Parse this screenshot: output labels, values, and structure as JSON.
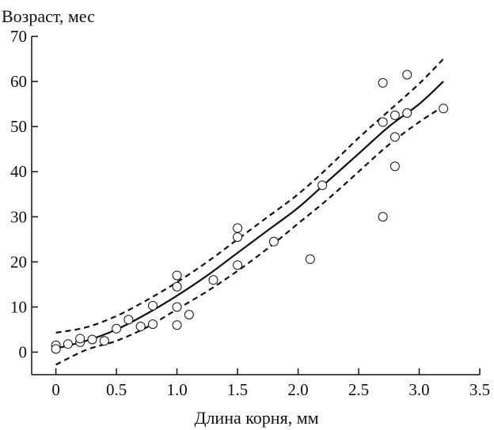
{
  "chart_data": {
    "type": "scatter",
    "title": "",
    "xlabel": "Длина корня, мм",
    "ylabel": "Возраст, мес",
    "xlim": [
      -0.2,
      3.5
    ],
    "ylim": [
      -5,
      70
    ],
    "x_ticks": [
      "0",
      "0.5",
      "1.0",
      "1.5",
      "2.0",
      "2.5",
      "3.0",
      "3.5"
    ],
    "x_tick_values": [
      0,
      0.5,
      1.0,
      1.5,
      2.0,
      2.5,
      3.0,
      3.5
    ],
    "y_ticks": [
      "0",
      "10",
      "20",
      "30",
      "40",
      "50",
      "60",
      "70"
    ],
    "y_tick_values": [
      0,
      10,
      20,
      30,
      40,
      50,
      60,
      70
    ],
    "grid": false,
    "legend": "none",
    "points": {
      "x": [
        0,
        0,
        0.1,
        0.2,
        0.2,
        0.3,
        0.4,
        0.5,
        0.6,
        0.7,
        0.8,
        0.8,
        1.0,
        1.0,
        1.0,
        1.0,
        1.1,
        1.3,
        1.5,
        1.5,
        1.5,
        1.8,
        2.1,
        2.2,
        2.7,
        2.7,
        2.7,
        2.8,
        2.8,
        2.8,
        2.9,
        2.9,
        3.2
      ],
      "y": [
        1.5,
        0.7,
        1.8,
        2.2,
        3.0,
        2.8,
        2.5,
        5.2,
        7.2,
        5.7,
        6.2,
        10.3,
        17.0,
        14.5,
        10.0,
        6.0,
        8.3,
        16.0,
        27.5,
        25.5,
        19.3,
        24.5,
        20.6,
        37.0,
        59.7,
        51.0,
        30.0,
        52.5,
        47.7,
        41.2,
        61.5,
        53.0,
        54.0
      ]
    },
    "fit_line": {
      "style": "solid",
      "x": [
        0,
        0.25,
        0.5,
        0.75,
        1.0,
        1.25,
        1.5,
        1.75,
        2.0,
        2.25,
        2.5,
        2.75,
        3.0,
        3.2
      ],
      "y": [
        0.8,
        2.5,
        5.0,
        8.5,
        12.5,
        17.0,
        22.0,
        27.0,
        32.0,
        38.0,
        44.0,
        50.0,
        55.0,
        60.0
      ]
    },
    "upper_band": {
      "style": "dashed",
      "x": [
        0,
        0.25,
        0.5,
        0.75,
        1.0,
        1.25,
        1.5,
        1.75,
        2.0,
        2.25,
        2.5,
        2.75,
        3.0,
        3.2
      ],
      "y": [
        4.3,
        5.5,
        8.0,
        11.5,
        15.5,
        20.0,
        25.0,
        30.0,
        35.0,
        41.0,
        47.5,
        53.5,
        59.5,
        65.0
      ]
    },
    "lower_band": {
      "style": "dashed",
      "x": [
        0,
        0.25,
        0.5,
        0.75,
        1.0,
        1.25,
        1.5,
        1.75,
        2.0,
        2.25,
        2.5,
        2.75,
        3.0,
        3.2
      ],
      "y": [
        -2.8,
        0.5,
        2.5,
        5.5,
        9.5,
        13.5,
        18.0,
        23.0,
        28.5,
        34.0,
        40.0,
        46.0,
        51.0,
        54.5
      ]
    }
  }
}
